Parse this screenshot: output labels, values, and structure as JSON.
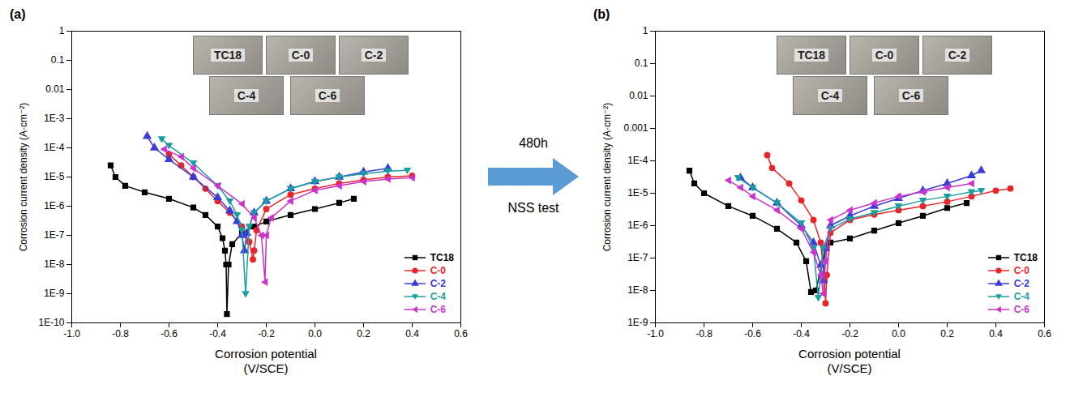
{
  "arrow_text": [
    "480h",
    "NSS test"
  ],
  "chart_data": [
    {
      "type": "line",
      "panel": "(a)",
      "x_label": "Corrosion potential (V/SCE)",
      "y_label": "Corrosion current density (A·cm⁻²)",
      "log": "y",
      "grid": false,
      "legend": "lower right",
      "annotations": [
        "TC18",
        "C-0",
        "C-2",
        "C-4",
        "C-6"
      ],
      "xlim": [
        -1.0,
        0.6
      ],
      "xticks": [
        {
          "value": -1.0,
          "label": "-1.0"
        },
        -0.8,
        -0.6,
        -0.4,
        -0.2,
        {
          "value": 0,
          "label": "0.0"
        },
        0.2,
        0.4,
        0.6
      ],
      "ylim": [
        1e-10,
        1
      ],
      "yticks": [
        1,
        0.1,
        0.01,
        {
          "value": 0.001,
          "label": "1E-3"
        },
        {
          "value": 0.0001,
          "label": "1E-4"
        },
        {
          "value": 1e-05,
          "label": "1E-5"
        },
        {
          "value": 1e-06,
          "label": "1E-6"
        },
        {
          "value": 1e-07,
          "label": "1E-7"
        },
        {
          "value": 1e-08,
          "label": "1E-8"
        },
        {
          "value": 1e-09,
          "label": "1E-9"
        },
        {
          "value": 1e-10,
          "label": "1E-10"
        }
      ],
      "series": [
        {
          "name": "TC18",
          "color": "#000000",
          "marker": "square",
          "x": [
            -0.84,
            -0.82,
            -0.78,
            -0.7,
            -0.6,
            -0.5,
            -0.45,
            -0.4,
            -0.38,
            -0.37,
            -0.365,
            -0.362,
            -0.355,
            -0.34,
            -0.3,
            -0.25,
            -0.2,
            -0.1,
            0.0,
            0.1,
            0.16
          ],
          "values": [
            2.5e-05,
            1e-05,
            5e-06,
            3e-06,
            1.8e-06,
            9e-07,
            5e-07,
            2e-07,
            8e-08,
            3e-08,
            1e-08,
            2e-10,
            1e-08,
            5e-08,
            1.2e-07,
            2e-07,
            3e-07,
            5e-07,
            8e-07,
            1.3e-06,
            1.8e-06
          ]
        },
        {
          "name": "C-0",
          "color": "#e8262a",
          "marker": "circle",
          "x": [
            -0.6,
            -0.55,
            -0.5,
            -0.45,
            -0.4,
            -0.35,
            -0.3,
            -0.27,
            -0.255,
            -0.25,
            -0.24,
            -0.2,
            -0.1,
            0.0,
            0.1,
            0.2,
            0.3,
            0.4
          ],
          "values": [
            6e-05,
            2.5e-05,
            1e-05,
            4e-06,
            1.5e-06,
            6e-07,
            2e-07,
            6e-08,
            1.5e-08,
            3e-08,
            1.5e-07,
            8e-07,
            2.5e-06,
            4e-06,
            6e-06,
            8e-06,
            1e-05,
            1.1e-05
          ]
        },
        {
          "name": "C-2",
          "color": "#3b3bd9",
          "marker": "triangle-up",
          "x": [
            -0.69,
            -0.66,
            -0.6,
            -0.5,
            -0.4,
            -0.35,
            -0.32,
            -0.3,
            -0.29,
            -0.28,
            -0.25,
            -0.2,
            -0.1,
            0.0,
            0.1,
            0.2,
            0.3
          ],
          "values": [
            0.00025,
            0.0001,
            4e-05,
            1e-05,
            2e-06,
            7e-07,
            3e-07,
            1e-07,
            3e-08,
            1.2e-07,
            6e-07,
            1.5e-06,
            4e-06,
            7e-06,
            1e-05,
            1.5e-05,
            2e-05
          ]
        },
        {
          "name": "C-4",
          "color": "#1a9ea0",
          "marker": "triangle-down",
          "x": [
            -0.63,
            -0.6,
            -0.5,
            -0.4,
            -0.35,
            -0.32,
            -0.3,
            -0.285,
            -0.27,
            -0.25,
            -0.2,
            -0.1,
            0.0,
            0.1,
            0.2,
            0.3,
            0.38
          ],
          "values": [
            0.0002,
            0.00012,
            3e-05,
            5e-06,
            1.5e-06,
            5e-07,
            1.5e-07,
            1e-09,
            2e-07,
            6e-07,
            1.5e-06,
            4e-06,
            7e-06,
            1e-05,
            1.3e-05,
            1.6e-05,
            1.7e-05
          ]
        },
        {
          "name": "C-6",
          "color": "#cc33cc",
          "marker": "triangle-left",
          "x": [
            -0.62,
            -0.55,
            -0.5,
            -0.4,
            -0.3,
            -0.25,
            -0.22,
            -0.205,
            -0.2,
            -0.18,
            -0.1,
            0.0,
            0.1,
            0.2,
            0.3,
            0.4
          ],
          "values": [
            9e-05,
            5e-05,
            2e-05,
            5e-06,
            1.2e-06,
            4e-07,
            1e-07,
            2.5e-09,
            1e-07,
            4e-07,
            1.5e-06,
            3.5e-06,
            5e-06,
            7e-06,
            8.5e-06,
            9.5e-06
          ]
        }
      ]
    },
    {
      "type": "line",
      "panel": "(b)",
      "x_label": "Corrosion potential (V/SCE)",
      "y_label": "Corrosion current density (A·cm⁻²)",
      "log": "y",
      "grid": false,
      "legend": "lower right",
      "annotations": [
        "TC18",
        "C-0",
        "C-2",
        "C-4",
        "C-6"
      ],
      "xlim": [
        -1.0,
        0.6
      ],
      "xticks": [
        {
          "value": -1.0,
          "label": "-1.0"
        },
        -0.8,
        -0.6,
        -0.4,
        -0.2,
        {
          "value": 0,
          "label": "0.0"
        },
        0.2,
        0.4,
        0.6
      ],
      "ylim": [
        1e-09,
        1
      ],
      "yticks": [
        1,
        0.1,
        0.01,
        0.001,
        {
          "value": 0.0001,
          "label": "1E-4"
        },
        {
          "value": 1e-05,
          "label": "1E-5"
        },
        {
          "value": 1e-06,
          "label": "1E-6"
        },
        {
          "value": 1e-07,
          "label": "1E-7"
        },
        {
          "value": 1e-08,
          "label": "1E-8"
        },
        {
          "value": 1e-09,
          "label": "1E-9"
        }
      ],
      "series": [
        {
          "name": "TC18",
          "color": "#000000",
          "marker": "square",
          "x": [
            -0.86,
            -0.84,
            -0.8,
            -0.7,
            -0.6,
            -0.5,
            -0.42,
            -0.38,
            -0.36,
            -0.34,
            -0.3,
            -0.28,
            -0.2,
            -0.1,
            0.0,
            0.1,
            0.2,
            0.28
          ],
          "values": [
            5e-05,
            2e-05,
            1e-05,
            4e-06,
            2e-06,
            8e-07,
            3e-07,
            8e-08,
            9e-09,
            1e-08,
            2e-07,
            3e-07,
            4e-07,
            7e-07,
            1.2e-06,
            2e-06,
            3.5e-06,
            5e-06
          ]
        },
        {
          "name": "C-0",
          "color": "#e8262a",
          "marker": "circle",
          "x": [
            -0.54,
            -0.52,
            -0.45,
            -0.4,
            -0.35,
            -0.32,
            -0.305,
            -0.3,
            -0.295,
            -0.28,
            -0.2,
            -0.1,
            0.0,
            0.1,
            0.2,
            0.3,
            0.4,
            0.46
          ],
          "values": [
            0.00015,
            6e-05,
            2e-05,
            6e-06,
            1.5e-06,
            3e-07,
            2e-08,
            4e-09,
            3e-08,
            6e-07,
            1.5e-06,
            2.2e-06,
            3e-06,
            4e-06,
            5.5e-06,
            8e-06,
            1.2e-05,
            1.4e-05
          ]
        },
        {
          "name": "C-2",
          "color": "#3b3bd9",
          "marker": "triangle-up",
          "x": [
            -0.65,
            -0.6,
            -0.5,
            -0.4,
            -0.35,
            -0.32,
            -0.31,
            -0.3,
            -0.28,
            -0.2,
            -0.1,
            0.0,
            0.1,
            0.2,
            0.3,
            0.34
          ],
          "values": [
            3e-05,
            1.5e-05,
            5e-06,
            1e-06,
            3e-07,
            6e-08,
            2e-08,
            2e-07,
            1e-06,
            2e-06,
            4e-06,
            7e-06,
            1.2e-05,
            2e-05,
            3.5e-05,
            5e-05
          ]
        },
        {
          "name": "C-4",
          "color": "#1a9ea0",
          "marker": "triangle-down",
          "x": [
            -0.66,
            -0.6,
            -0.5,
            -0.4,
            -0.35,
            -0.33,
            -0.31,
            -0.28,
            -0.2,
            -0.1,
            0.0,
            0.1,
            0.2,
            0.3,
            0.34
          ],
          "values": [
            3e-05,
            1.5e-05,
            5e-06,
            1.2e-06,
            2e-07,
            6e-09,
            2e-07,
            8e-07,
            1.6e-06,
            2.5e-06,
            4e-06,
            6e-06,
            8e-06,
            1.1e-05,
            1.2e-05
          ]
        },
        {
          "name": "C-6",
          "color": "#cc33cc",
          "marker": "triangle-left",
          "x": [
            -0.7,
            -0.65,
            -0.6,
            -0.5,
            -0.4,
            -0.35,
            -0.32,
            -0.31,
            -0.3,
            -0.28,
            -0.2,
            -0.1,
            0.0,
            0.1,
            0.2,
            0.3
          ],
          "values": [
            2.5e-05,
            1.5e-05,
            8e-06,
            3e-06,
            8e-07,
            1.5e-07,
            3e-08,
            8e-09,
            8e-08,
            1.5e-06,
            3e-06,
            5e-06,
            8e-06,
            1.1e-05,
            1.5e-05,
            2e-05
          ]
        }
      ]
    }
  ]
}
